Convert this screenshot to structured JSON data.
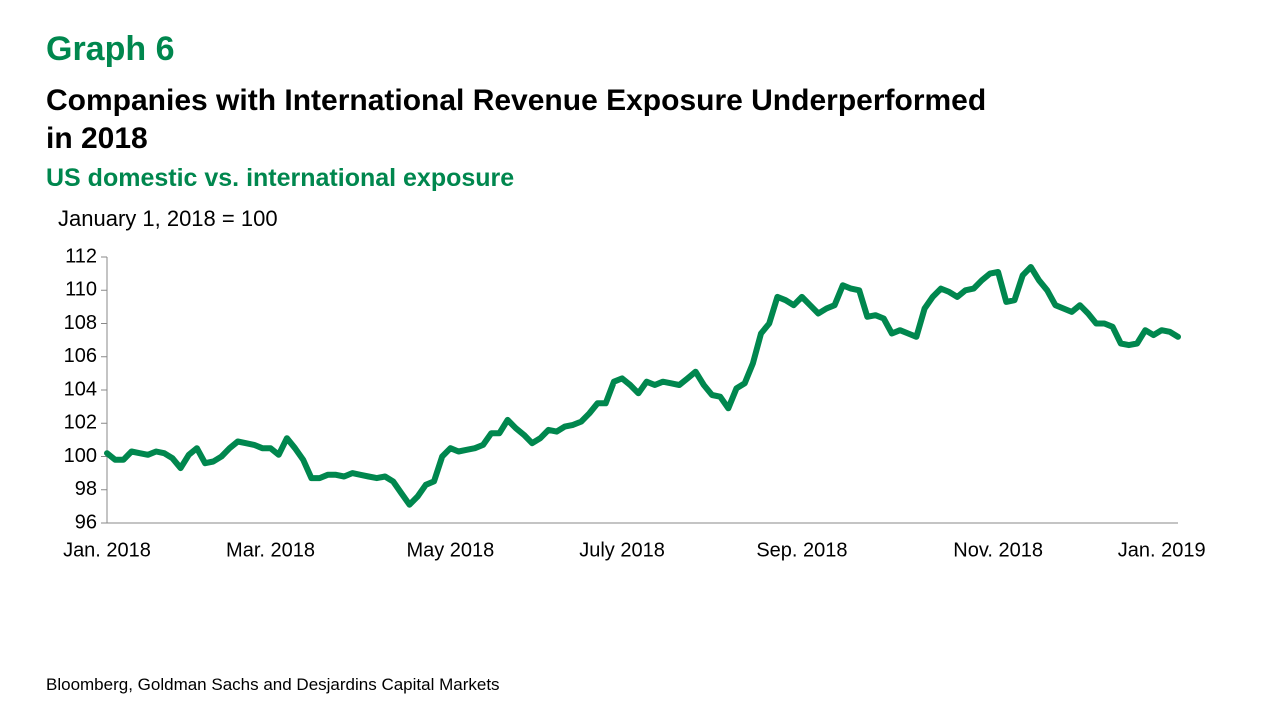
{
  "chart_data": {
    "type": "line",
    "label": "Graph 6",
    "title": "Companies with International Revenue Exposure Underperformed\nin 2018",
    "subtitle": "US domestic vs. international exposure",
    "y_axis_label": "January 1, 2018 = 100",
    "source": "Bloomberg, Goldman Sachs and Desjardins Capital Markets",
    "categories": [
      "Jan. 2018",
      null,
      null,
      null,
      null,
      null,
      null,
      null,
      null,
      null,
      null,
      null,
      null,
      null,
      null,
      null,
      null,
      null,
      null,
      null,
      "Mar. 2018",
      null,
      null,
      null,
      null,
      null,
      null,
      null,
      null,
      null,
      null,
      null,
      null,
      null,
      null,
      null,
      null,
      null,
      null,
      null,
      null,
      null,
      "May 2018",
      null,
      null,
      null,
      null,
      null,
      null,
      null,
      null,
      null,
      null,
      null,
      null,
      null,
      null,
      null,
      null,
      null,
      null,
      null,
      null,
      "July 2018",
      null,
      null,
      null,
      null,
      null,
      null,
      null,
      null,
      null,
      null,
      null,
      null,
      null,
      null,
      null,
      null,
      null,
      null,
      null,
      null,
      null,
      "Sep. 2018",
      null,
      null,
      null,
      null,
      null,
      null,
      null,
      null,
      null,
      null,
      null,
      null,
      null,
      null,
      null,
      null,
      null,
      null,
      null,
      null,
      null,
      null,
      null,
      "Nov. 2018",
      null,
      null,
      null,
      null,
      null,
      null,
      null,
      null,
      null,
      null,
      null,
      null,
      null,
      null,
      null,
      null,
      null,
      null,
      null,
      "Jan. 2019",
      null,
      null
    ],
    "series": [
      {
        "color": "#00874e",
        "values": [
          100.2,
          99.8,
          99.8,
          100.3,
          100.2,
          100.1,
          100.3,
          100.2,
          99.9,
          99.3,
          100.1,
          100.5,
          99.6,
          99.7,
          100.0,
          100.5,
          100.9,
          100.8,
          100.7,
          100.5,
          100.5,
          100.1,
          101.1,
          100.5,
          99.8,
          98.7,
          98.7,
          98.9,
          98.9,
          98.8,
          99.0,
          98.9,
          98.8,
          98.7,
          98.8,
          98.5,
          97.8,
          97.1,
          97.6,
          98.3,
          98.5,
          100.0,
          100.5,
          100.3,
          100.4,
          100.5,
          100.7,
          101.4,
          101.4,
          102.2,
          101.7,
          101.3,
          100.8,
          101.1,
          101.6,
          101.5,
          101.8,
          101.9,
          102.1,
          102.6,
          103.2,
          103.2,
          104.5,
          104.7,
          104.3,
          103.8,
          104.5,
          104.3,
          104.5,
          104.4,
          104.3,
          104.7,
          105.1,
          104.3,
          103.7,
          103.6,
          102.9,
          104.1,
          104.4,
          105.6,
          107.4,
          108.0,
          109.6,
          109.4,
          109.1,
          109.6,
          109.1,
          108.6,
          108.9,
          109.1,
          110.3,
          110.1,
          110.0,
          108.4,
          108.5,
          108.3,
          107.4,
          107.6,
          107.4,
          107.2,
          108.9,
          109.6,
          110.1,
          109.9,
          109.6,
          110.0,
          110.1,
          110.6,
          111.0,
          111.1,
          109.3,
          109.4,
          110.9,
          111.4,
          110.6,
          110.0,
          109.1,
          108.9,
          108.7,
          109.1,
          108.6,
          108.0,
          108.0,
          107.8,
          106.8,
          106.7,
          106.8,
          107.6,
          107.3,
          107.6,
          107.5,
          107.2
        ]
      }
    ],
    "ylim": [
      96,
      112
    ],
    "yticks": [
      96,
      98,
      100,
      102,
      104,
      106,
      108,
      110,
      112
    ],
    "grid": false
  }
}
